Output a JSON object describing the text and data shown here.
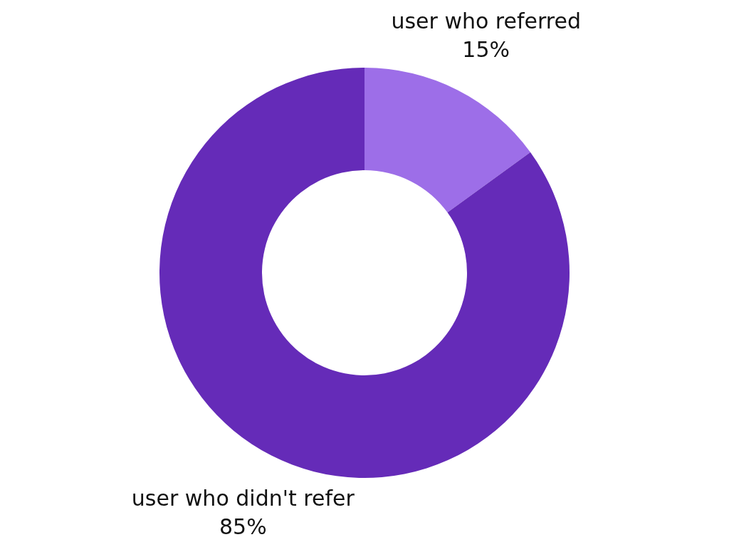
{
  "chart_data": {
    "type": "donut",
    "categories": [
      "user who referred",
      "user who didn't refer"
    ],
    "values": [
      15,
      85
    ],
    "colors": [
      "#9d6ee8",
      "#652bb8"
    ],
    "value_labels": [
      "15%",
      "85%"
    ],
    "legend": false
  }
}
